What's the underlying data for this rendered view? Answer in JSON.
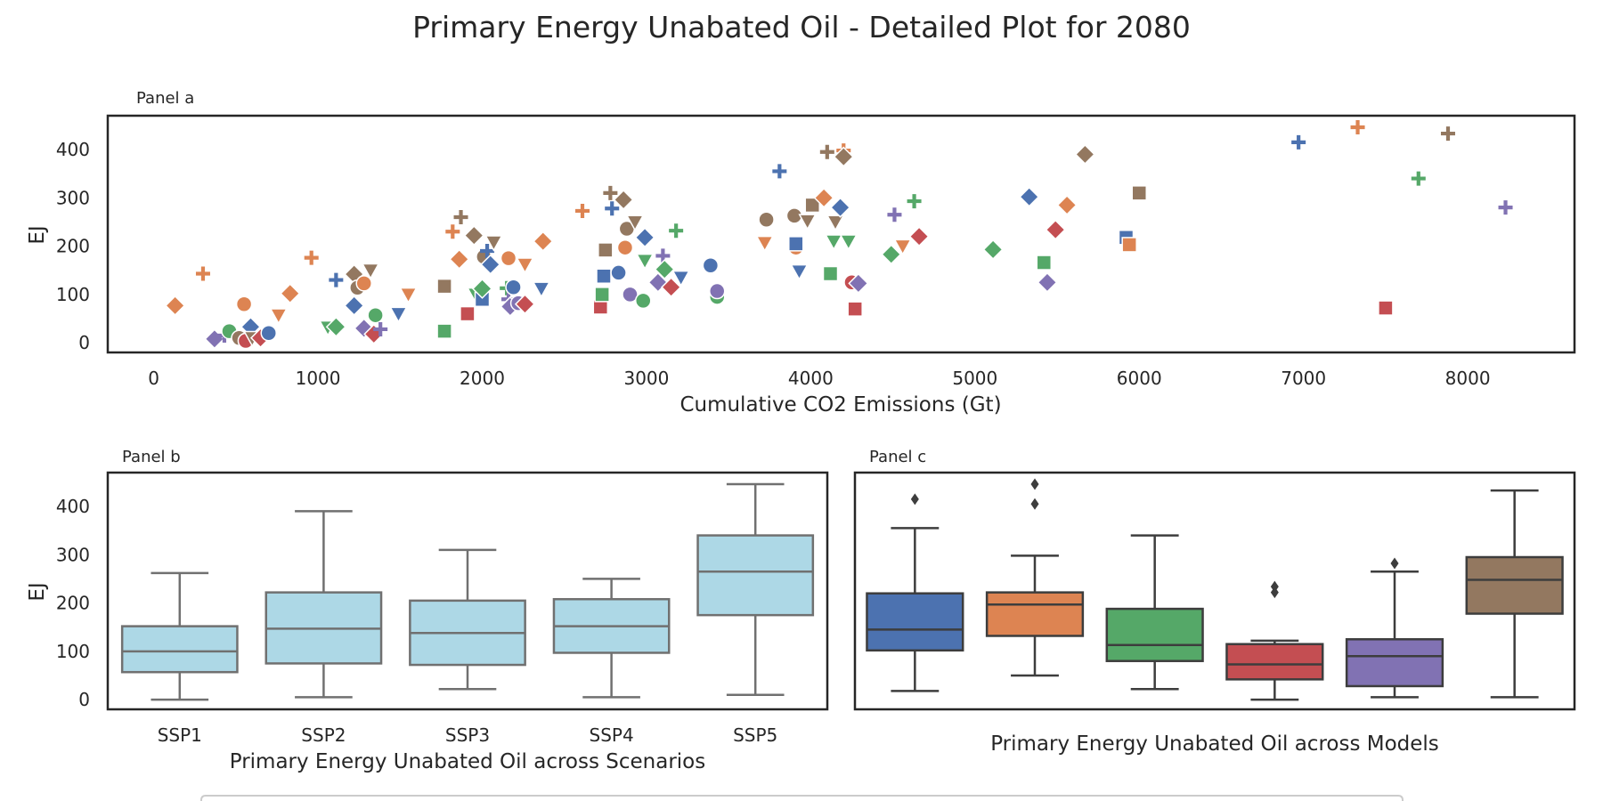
{
  "title": "Primary Energy Unabated Oil - Detailed Plot for 2080",
  "colors": {
    "blue": "#4c72b0",
    "orange": "#dd8452",
    "green": "#55a868",
    "red": "#c44e52",
    "purple": "#8172b3",
    "brown": "#937860",
    "lightblue": "#add8e6",
    "box_edge_b": "#707070",
    "box_edge_c": "#3d3d3d"
  },
  "chart_data": [
    {
      "type": "scatter",
      "panel_label": "Panel a",
      "xlabel": "Cumulative CO2 Emissions (Gt)",
      "ylabel": "EJ",
      "xlim": [
        -280,
        8650
      ],
      "ylim": [
        -20,
        470
      ],
      "xticks": [
        0,
        1000,
        2000,
        3000,
        4000,
        5000,
        6000,
        7000,
        8000
      ],
      "yticks": [
        0,
        100,
        200,
        300,
        400
      ],
      "grid": false,
      "marker_shapes": [
        "circle",
        "cross",
        "square",
        "diamond",
        "triangle-down"
      ],
      "points": [
        {
          "x": 130,
          "y": 77,
          "m": "diamond",
          "c": "orange"
        },
        {
          "x": 300,
          "y": 143,
          "m": "cross",
          "c": "orange"
        },
        {
          "x": 370,
          "y": 8,
          "m": "diamond",
          "c": "purple"
        },
        {
          "x": 430,
          "y": 15,
          "m": "cross",
          "c": "purple"
        },
        {
          "x": 460,
          "y": 24,
          "m": "circle",
          "c": "green"
        },
        {
          "x": 520,
          "y": 10,
          "m": "circle",
          "c": "brown"
        },
        {
          "x": 550,
          "y": 80,
          "m": "circle",
          "c": "orange"
        },
        {
          "x": 560,
          "y": 4,
          "m": "circle",
          "c": "red"
        },
        {
          "x": 590,
          "y": 33,
          "m": "diamond",
          "c": "blue"
        },
        {
          "x": 600,
          "y": 10,
          "m": "triangle-down",
          "c": "brown"
        },
        {
          "x": 650,
          "y": 10,
          "m": "diamond",
          "c": "red"
        },
        {
          "x": 700,
          "y": 20,
          "m": "circle",
          "c": "blue"
        },
        {
          "x": 760,
          "y": 57,
          "m": "triangle-down",
          "c": "orange"
        },
        {
          "x": 830,
          "y": 102,
          "m": "diamond",
          "c": "orange"
        },
        {
          "x": 960,
          "y": 176,
          "m": "cross",
          "c": "orange"
        },
        {
          "x": 1060,
          "y": 32,
          "m": "triangle-down",
          "c": "green"
        },
        {
          "x": 1110,
          "y": 33,
          "m": "diamond",
          "c": "green"
        },
        {
          "x": 1110,
          "y": 130,
          "m": "cross",
          "c": "blue"
        },
        {
          "x": 1220,
          "y": 77,
          "m": "diamond",
          "c": "blue"
        },
        {
          "x": 1220,
          "y": 142,
          "m": "diamond",
          "c": "brown"
        },
        {
          "x": 1240,
          "y": 114,
          "m": "circle",
          "c": "brown"
        },
        {
          "x": 1280,
          "y": 123,
          "m": "circle",
          "c": "orange"
        },
        {
          "x": 1280,
          "y": 30,
          "m": "diamond",
          "c": "purple"
        },
        {
          "x": 1320,
          "y": 150,
          "m": "triangle-down",
          "c": "brown"
        },
        {
          "x": 1340,
          "y": 18,
          "m": "diamond",
          "c": "red"
        },
        {
          "x": 1350,
          "y": 57,
          "m": "circle",
          "c": "green"
        },
        {
          "x": 1380,
          "y": 28,
          "m": "cross",
          "c": "purple"
        },
        {
          "x": 1490,
          "y": 60,
          "m": "triangle-down",
          "c": "blue"
        },
        {
          "x": 1550,
          "y": 100,
          "m": "triangle-down",
          "c": "orange"
        },
        {
          "x": 1770,
          "y": 24,
          "m": "square",
          "c": "green"
        },
        {
          "x": 1770,
          "y": 117,
          "m": "square",
          "c": "brown"
        },
        {
          "x": 1820,
          "y": 230,
          "m": "cross",
          "c": "orange"
        },
        {
          "x": 1860,
          "y": 173,
          "m": "diamond",
          "c": "orange"
        },
        {
          "x": 1870,
          "y": 260,
          "m": "cross",
          "c": "brown"
        },
        {
          "x": 1910,
          "y": 60,
          "m": "square",
          "c": "red"
        },
        {
          "x": 1950,
          "y": 222,
          "m": "diamond",
          "c": "brown"
        },
        {
          "x": 1960,
          "y": 100,
          "m": "triangle-down",
          "c": "green"
        },
        {
          "x": 2000,
          "y": 90,
          "m": "square",
          "c": "blue"
        },
        {
          "x": 2000,
          "y": 112,
          "m": "diamond",
          "c": "green"
        },
        {
          "x": 2010,
          "y": 178,
          "m": "circle",
          "c": "brown"
        },
        {
          "x": 2030,
          "y": 190,
          "m": "cross",
          "c": "blue"
        },
        {
          "x": 2050,
          "y": 162,
          "m": "diamond",
          "c": "blue"
        },
        {
          "x": 2070,
          "y": 208,
          "m": "triangle-down",
          "c": "brown"
        },
        {
          "x": 2150,
          "y": 113,
          "m": "cross",
          "c": "green"
        },
        {
          "x": 2160,
          "y": 175,
          "m": "circle",
          "c": "orange"
        },
        {
          "x": 2160,
          "y": 90,
          "m": "cross",
          "c": "purple"
        },
        {
          "x": 2170,
          "y": 75,
          "m": "diamond",
          "c": "purple"
        },
        {
          "x": 2190,
          "y": 115,
          "m": "circle",
          "c": "blue"
        },
        {
          "x": 2220,
          "y": 82,
          "m": "circle",
          "c": "purple"
        },
        {
          "x": 2260,
          "y": 80,
          "m": "diamond",
          "c": "red"
        },
        {
          "x": 2260,
          "y": 162,
          "m": "triangle-down",
          "c": "orange"
        },
        {
          "x": 2360,
          "y": 112,
          "m": "triangle-down",
          "c": "blue"
        },
        {
          "x": 2370,
          "y": 210,
          "m": "diamond",
          "c": "orange"
        },
        {
          "x": 2610,
          "y": 273,
          "m": "cross",
          "c": "orange"
        },
        {
          "x": 2720,
          "y": 74,
          "m": "square",
          "c": "red"
        },
        {
          "x": 2730,
          "y": 100,
          "m": "square",
          "c": "green"
        },
        {
          "x": 2740,
          "y": 138,
          "m": "square",
          "c": "blue"
        },
        {
          "x": 2750,
          "y": 192,
          "m": "square",
          "c": "brown"
        },
        {
          "x": 2780,
          "y": 310,
          "m": "cross",
          "c": "brown"
        },
        {
          "x": 2790,
          "y": 278,
          "m": "cross",
          "c": "blue"
        },
        {
          "x": 2830,
          "y": 145,
          "m": "circle",
          "c": "blue"
        },
        {
          "x": 2860,
          "y": 296,
          "m": "diamond",
          "c": "brown"
        },
        {
          "x": 2870,
          "y": 197,
          "m": "circle",
          "c": "orange"
        },
        {
          "x": 2880,
          "y": 236,
          "m": "circle",
          "c": "brown"
        },
        {
          "x": 2900,
          "y": 100,
          "m": "circle",
          "c": "purple"
        },
        {
          "x": 2930,
          "y": 250,
          "m": "triangle-down",
          "c": "brown"
        },
        {
          "x": 2980,
          "y": 87,
          "m": "circle",
          "c": "green"
        },
        {
          "x": 2990,
          "y": 218,
          "m": "diamond",
          "c": "blue"
        },
        {
          "x": 2990,
          "y": 170,
          "m": "triangle-down",
          "c": "green"
        },
        {
          "x": 3070,
          "y": 125,
          "m": "diamond",
          "c": "purple"
        },
        {
          "x": 3100,
          "y": 180,
          "m": "cross",
          "c": "purple"
        },
        {
          "x": 3110,
          "y": 152,
          "m": "diamond",
          "c": "green"
        },
        {
          "x": 3150,
          "y": 115,
          "m": "diamond",
          "c": "red"
        },
        {
          "x": 3180,
          "y": 232,
          "m": "cross",
          "c": "green"
        },
        {
          "x": 3210,
          "y": 135,
          "m": "triangle-down",
          "c": "blue"
        },
        {
          "x": 3390,
          "y": 160,
          "m": "circle",
          "c": "blue"
        },
        {
          "x": 3430,
          "y": 95,
          "m": "circle",
          "c": "green"
        },
        {
          "x": 3430,
          "y": 107,
          "m": "circle",
          "c": "purple"
        },
        {
          "x": 3720,
          "y": 207,
          "m": "triangle-down",
          "c": "orange"
        },
        {
          "x": 3730,
          "y": 255,
          "m": "circle",
          "c": "brown"
        },
        {
          "x": 3810,
          "y": 355,
          "m": "cross",
          "c": "blue"
        },
        {
          "x": 3900,
          "y": 263,
          "m": "circle",
          "c": "brown"
        },
        {
          "x": 3910,
          "y": 197,
          "m": "circle",
          "c": "orange"
        },
        {
          "x": 3910,
          "y": 205,
          "m": "square",
          "c": "blue"
        },
        {
          "x": 3930,
          "y": 148,
          "m": "triangle-down",
          "c": "blue"
        },
        {
          "x": 3980,
          "y": 252,
          "m": "triangle-down",
          "c": "brown"
        },
        {
          "x": 4010,
          "y": 285,
          "m": "square",
          "c": "brown"
        },
        {
          "x": 4080,
          "y": 300,
          "m": "diamond",
          "c": "orange"
        },
        {
          "x": 4100,
          "y": 395,
          "m": "cross",
          "c": "brown"
        },
        {
          "x": 4120,
          "y": 143,
          "m": "square",
          "c": "green"
        },
        {
          "x": 4140,
          "y": 210,
          "m": "triangle-down",
          "c": "green"
        },
        {
          "x": 4150,
          "y": 250,
          "m": "triangle-down",
          "c": "brown"
        },
        {
          "x": 4180,
          "y": 280,
          "m": "diamond",
          "c": "blue"
        },
        {
          "x": 4200,
          "y": 398,
          "m": "cross",
          "c": "orange"
        },
        {
          "x": 4200,
          "y": 385,
          "m": "diamond",
          "c": "brown"
        },
        {
          "x": 4230,
          "y": 210,
          "m": "triangle-down",
          "c": "green"
        },
        {
          "x": 4250,
          "y": 125,
          "m": "circle",
          "c": "red"
        },
        {
          "x": 4270,
          "y": 70,
          "m": "square",
          "c": "red"
        },
        {
          "x": 4290,
          "y": 123,
          "m": "diamond",
          "c": "purple"
        },
        {
          "x": 4490,
          "y": 183,
          "m": "diamond",
          "c": "green"
        },
        {
          "x": 4510,
          "y": 265,
          "m": "cross",
          "c": "purple"
        },
        {
          "x": 4560,
          "y": 200,
          "m": "triangle-down",
          "c": "orange"
        },
        {
          "x": 4630,
          "y": 293,
          "m": "cross",
          "c": "green"
        },
        {
          "x": 4660,
          "y": 220,
          "m": "diamond",
          "c": "red"
        },
        {
          "x": 5110,
          "y": 193,
          "m": "diamond",
          "c": "green"
        },
        {
          "x": 5330,
          "y": 302,
          "m": "diamond",
          "c": "blue"
        },
        {
          "x": 5420,
          "y": 166,
          "m": "square",
          "c": "green"
        },
        {
          "x": 5440,
          "y": 125,
          "m": "diamond",
          "c": "purple"
        },
        {
          "x": 5490,
          "y": 234,
          "m": "diamond",
          "c": "red"
        },
        {
          "x": 5560,
          "y": 285,
          "m": "diamond",
          "c": "orange"
        },
        {
          "x": 5670,
          "y": 390,
          "m": "diamond",
          "c": "brown"
        },
        {
          "x": 5920,
          "y": 218,
          "m": "square",
          "c": "blue"
        },
        {
          "x": 5940,
          "y": 203,
          "m": "square",
          "c": "orange"
        },
        {
          "x": 6000,
          "y": 310,
          "m": "square",
          "c": "brown"
        },
        {
          "x": 6970,
          "y": 415,
          "m": "cross",
          "c": "blue"
        },
        {
          "x": 7330,
          "y": 446,
          "m": "cross",
          "c": "orange"
        },
        {
          "x": 7500,
          "y": 72,
          "m": "square",
          "c": "red"
        },
        {
          "x": 7700,
          "y": 340,
          "m": "cross",
          "c": "green"
        },
        {
          "x": 7880,
          "y": 433,
          "m": "cross",
          "c": "brown"
        },
        {
          "x": 8230,
          "y": 280,
          "m": "cross",
          "c": "purple"
        }
      ]
    },
    {
      "type": "box",
      "panel_label": "Panel b",
      "xlabel": "Primary Energy Unabated Oil across Scenarios",
      "ylabel": "EJ",
      "ylim": [
        -20,
        470
      ],
      "yticks": [
        0,
        100,
        200,
        300,
        400
      ],
      "categories": [
        "SSP1",
        "SSP2",
        "SSP3",
        "SSP4",
        "SSP5"
      ],
      "boxes": [
        {
          "min": 0,
          "q1": 57,
          "median": 100,
          "q3": 152,
          "max": 262,
          "fliers": []
        },
        {
          "min": 5,
          "q1": 75,
          "median": 147,
          "q3": 222,
          "max": 390,
          "fliers": []
        },
        {
          "min": 22,
          "q1": 72,
          "median": 138,
          "q3": 205,
          "max": 310,
          "fliers": []
        },
        {
          "min": 5,
          "q1": 97,
          "median": 152,
          "q3": 208,
          "max": 250,
          "fliers": []
        },
        {
          "min": 10,
          "q1": 175,
          "median": 265,
          "q3": 340,
          "max": 446,
          "fliers": []
        }
      ]
    },
    {
      "type": "box",
      "panel_label": "Panel c",
      "xlabel": "Primary Energy Unabated Oil across Models",
      "ylim": [
        -20,
        470
      ],
      "categories": [
        "",
        "",
        "",
        "",
        "",
        ""
      ],
      "box_colors": [
        "blue",
        "orange",
        "green",
        "red",
        "purple",
        "brown"
      ],
      "boxes": [
        {
          "min": 18,
          "q1": 102,
          "median": 145,
          "q3": 220,
          "max": 355,
          "fliers": [
            415
          ]
        },
        {
          "min": 50,
          "q1": 132,
          "median": 197,
          "q3": 222,
          "max": 298,
          "fliers": [
            405,
            446
          ]
        },
        {
          "min": 22,
          "q1": 80,
          "median": 113,
          "q3": 188,
          "max": 340,
          "fliers": []
        },
        {
          "min": 0,
          "q1": 42,
          "median": 73,
          "q3": 115,
          "max": 122,
          "fliers": [
            222,
            234
          ]
        },
        {
          "min": 5,
          "q1": 28,
          "median": 90,
          "q3": 125,
          "max": 265,
          "fliers": [
            282
          ]
        },
        {
          "min": 5,
          "q1": 178,
          "median": 248,
          "q3": 295,
          "max": 433,
          "fliers": []
        }
      ]
    }
  ]
}
